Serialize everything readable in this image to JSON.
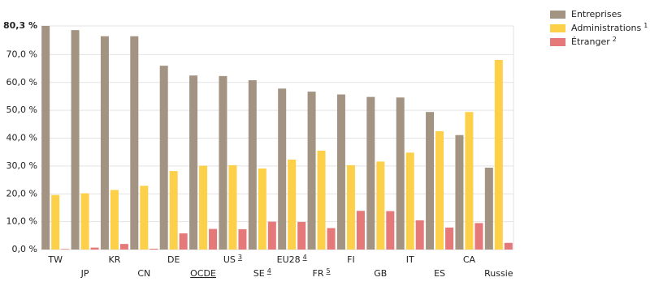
{
  "chart_data": {
    "type": "bar",
    "categories": [
      "TW",
      "JP",
      "KR",
      "CN",
      "DE",
      "OCDE",
      "US",
      "SE",
      "EU28",
      "FR",
      "FI",
      "GB",
      "IT",
      "ES",
      "CA",
      "Russie"
    ],
    "category_superscripts": [
      null,
      null,
      null,
      null,
      null,
      null,
      "3",
      "4",
      "4",
      "5",
      null,
      null,
      null,
      null,
      null,
      null
    ],
    "series": [
      {
        "name": "Entreprises",
        "note": null,
        "color": "#a39382",
        "values": [
          80.3,
          78.8,
          76.6,
          76.6,
          66.0,
          62.5,
          62.3,
          60.8,
          57.8,
          56.7,
          55.7,
          54.8,
          54.6,
          49.4,
          41.1,
          29.4
        ]
      },
      {
        "name": "Administrations",
        "note": "1",
        "color": "#fdd04a",
        "values": [
          19.6,
          20.2,
          21.4,
          22.9,
          28.2,
          30.1,
          30.3,
          29.1,
          32.3,
          35.5,
          30.3,
          31.6,
          34.8,
          42.5,
          49.4,
          68.1
        ]
      },
      {
        "name": "Étranger",
        "note": "2",
        "color": "#e5797a",
        "values": [
          0.2,
          0.7,
          2.0,
          0.3,
          5.8,
          7.4,
          7.3,
          10.0,
          9.9,
          7.7,
          13.9,
          13.8,
          10.5,
          7.9,
          9.5,
          2.4
        ]
      }
    ],
    "ylim": [
      0,
      80.3
    ],
    "yticks": [
      {
        "value": 0,
        "label": "0,0 %"
      },
      {
        "value": 10,
        "label": "10,0 %"
      },
      {
        "value": 20,
        "label": "20,0 %"
      },
      {
        "value": 30,
        "label": "30,0 %"
      },
      {
        "value": 40,
        "label": "40,0 %"
      },
      {
        "value": 50,
        "label": "50,0 %"
      },
      {
        "value": 60,
        "label": "60,0 %"
      },
      {
        "value": 70,
        "label": "70,0 %"
      },
      {
        "value": 80.3,
        "label": "80,3 %"
      }
    ],
    "grid": true,
    "legend": "top-right"
  }
}
